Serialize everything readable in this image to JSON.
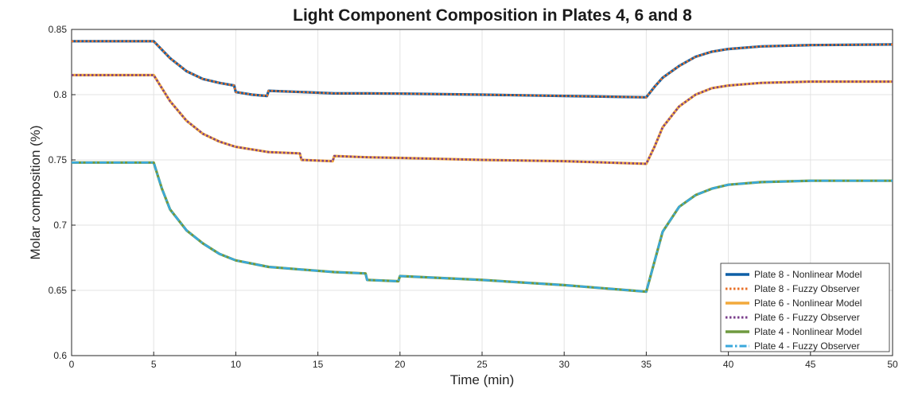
{
  "chart_data": {
    "type": "line",
    "title": "Light Component Composition in Plates 4, 6 and 8",
    "xlabel": "Time (min)",
    "ylabel": "Molar composition (%)",
    "xlim": [
      0,
      50
    ],
    "ylim": [
      0.6,
      0.85
    ],
    "xticks": [
      0,
      5,
      10,
      15,
      20,
      25,
      30,
      35,
      40,
      45,
      50
    ],
    "yticks": [
      0.6,
      0.65,
      0.7,
      0.75,
      0.8,
      0.85
    ],
    "xtick_labels": [
      "0",
      "5",
      "10",
      "15",
      "20",
      "25",
      "30",
      "35",
      "40",
      "45",
      "50"
    ],
    "ytick_labels": [
      "0.6",
      "0.65",
      "0.7",
      "0.75",
      "0.8",
      "0.85"
    ],
    "grid": true,
    "legend_position": "bottom-right",
    "series": [
      {
        "name": "Plate 8 - Nonlinear Model",
        "color": "#0d5fa6",
        "style": "solid",
        "points": [
          [
            0,
            0.841
          ],
          [
            5,
            0.841
          ],
          [
            6,
            0.828
          ],
          [
            7,
            0.818
          ],
          [
            8,
            0.812
          ],
          [
            9,
            0.809
          ],
          [
            9.9,
            0.807
          ],
          [
            10,
            0.802
          ],
          [
            11,
            0.8
          ],
          [
            11.9,
            0.799
          ],
          [
            12,
            0.803
          ],
          [
            14,
            0.802
          ],
          [
            16,
            0.801
          ],
          [
            18,
            0.801
          ],
          [
            20,
            0.8008
          ],
          [
            25,
            0.8
          ],
          [
            30,
            0.799
          ],
          [
            35,
            0.798
          ],
          [
            35.5,
            0.806
          ],
          [
            36,
            0.813
          ],
          [
            37,
            0.822
          ],
          [
            38,
            0.829
          ],
          [
            39,
            0.833
          ],
          [
            40,
            0.835
          ],
          [
            42,
            0.837
          ],
          [
            45,
            0.838
          ],
          [
            50,
            0.8385
          ]
        ]
      },
      {
        "name": "Plate 8 - Fuzzy Observer",
        "color": "#e8712a",
        "style": "dotted",
        "points": [
          [
            0,
            0.841
          ],
          [
            5,
            0.841
          ],
          [
            6,
            0.828
          ],
          [
            7,
            0.818
          ],
          [
            8,
            0.812
          ],
          [
            9,
            0.809
          ],
          [
            9.9,
            0.807
          ],
          [
            10,
            0.802
          ],
          [
            11,
            0.8
          ],
          [
            11.9,
            0.799
          ],
          [
            12,
            0.803
          ],
          [
            14,
            0.802
          ],
          [
            16,
            0.801
          ],
          [
            18,
            0.801
          ],
          [
            20,
            0.8008
          ],
          [
            25,
            0.8
          ],
          [
            30,
            0.799
          ],
          [
            35,
            0.798
          ],
          [
            35.5,
            0.806
          ],
          [
            36,
            0.813
          ],
          [
            37,
            0.822
          ],
          [
            38,
            0.829
          ],
          [
            39,
            0.833
          ],
          [
            40,
            0.835
          ],
          [
            42,
            0.837
          ],
          [
            45,
            0.838
          ],
          [
            50,
            0.8385
          ]
        ]
      },
      {
        "name": "Plate 6 - Nonlinear Model",
        "color": "#f2a93b",
        "style": "solid",
        "points": [
          [
            0,
            0.815
          ],
          [
            5,
            0.815
          ],
          [
            6,
            0.795
          ],
          [
            7,
            0.78
          ],
          [
            8,
            0.77
          ],
          [
            9,
            0.764
          ],
          [
            10,
            0.76
          ],
          [
            12,
            0.756
          ],
          [
            13.9,
            0.755
          ],
          [
            14,
            0.75
          ],
          [
            15.9,
            0.749
          ],
          [
            16,
            0.753
          ],
          [
            18,
            0.752
          ],
          [
            20,
            0.7515
          ],
          [
            25,
            0.75
          ],
          [
            30,
            0.749
          ],
          [
            35,
            0.747
          ],
          [
            35.5,
            0.76
          ],
          [
            36,
            0.775
          ],
          [
            37,
            0.791
          ],
          [
            38,
            0.8
          ],
          [
            39,
            0.805
          ],
          [
            40,
            0.807
          ],
          [
            42,
            0.809
          ],
          [
            45,
            0.81
          ],
          [
            50,
            0.81
          ]
        ]
      },
      {
        "name": "Plate 6 - Fuzzy Observer",
        "color": "#7b3f8c",
        "style": "dotted",
        "points": [
          [
            0,
            0.815
          ],
          [
            5,
            0.815
          ],
          [
            6,
            0.795
          ],
          [
            7,
            0.78
          ],
          [
            8,
            0.77
          ],
          [
            9,
            0.764
          ],
          [
            10,
            0.76
          ],
          [
            12,
            0.756
          ],
          [
            13.9,
            0.755
          ],
          [
            14,
            0.75
          ],
          [
            15.9,
            0.749
          ],
          [
            16,
            0.753
          ],
          [
            18,
            0.752
          ],
          [
            20,
            0.7515
          ],
          [
            25,
            0.75
          ],
          [
            30,
            0.749
          ],
          [
            35,
            0.747
          ],
          [
            35.5,
            0.76
          ],
          [
            36,
            0.775
          ],
          [
            37,
            0.791
          ],
          [
            38,
            0.8
          ],
          [
            39,
            0.805
          ],
          [
            40,
            0.807
          ],
          [
            42,
            0.809
          ],
          [
            45,
            0.81
          ],
          [
            50,
            0.81
          ]
        ]
      },
      {
        "name": "Plate 4 - Nonlinear Model",
        "color": "#6f9a3f",
        "style": "solid",
        "points": [
          [
            0,
            0.748
          ],
          [
            5,
            0.748
          ],
          [
            5.5,
            0.728
          ],
          [
            6,
            0.712
          ],
          [
            7,
            0.696
          ],
          [
            8,
            0.686
          ],
          [
            9,
            0.678
          ],
          [
            10,
            0.673
          ],
          [
            12,
            0.668
          ],
          [
            14,
            0.666
          ],
          [
            16,
            0.664
          ],
          [
            17.9,
            0.663
          ],
          [
            18,
            0.658
          ],
          [
            19.9,
            0.657
          ],
          [
            20,
            0.661
          ],
          [
            25,
            0.658
          ],
          [
            30,
            0.654
          ],
          [
            35,
            0.649
          ],
          [
            35.5,
            0.672
          ],
          [
            36,
            0.695
          ],
          [
            37,
            0.714
          ],
          [
            38,
            0.723
          ],
          [
            39,
            0.728
          ],
          [
            40,
            0.731
          ],
          [
            42,
            0.733
          ],
          [
            45,
            0.734
          ],
          [
            50,
            0.734
          ]
        ]
      },
      {
        "name": "Plate 4 - Fuzzy Observer",
        "color": "#3aa8dc",
        "style": "dashdot",
        "points": [
          [
            0,
            0.748
          ],
          [
            5,
            0.748
          ],
          [
            5.5,
            0.728
          ],
          [
            6,
            0.712
          ],
          [
            7,
            0.696
          ],
          [
            8,
            0.686
          ],
          [
            9,
            0.678
          ],
          [
            10,
            0.673
          ],
          [
            12,
            0.668
          ],
          [
            14,
            0.666
          ],
          [
            16,
            0.664
          ],
          [
            17.9,
            0.663
          ],
          [
            18,
            0.658
          ],
          [
            19.9,
            0.657
          ],
          [
            20,
            0.661
          ],
          [
            25,
            0.658
          ],
          [
            30,
            0.654
          ],
          [
            35,
            0.649
          ],
          [
            35.5,
            0.672
          ],
          [
            36,
            0.695
          ],
          [
            37,
            0.714
          ],
          [
            38,
            0.723
          ],
          [
            39,
            0.728
          ],
          [
            40,
            0.731
          ],
          [
            42,
            0.733
          ],
          [
            45,
            0.734
          ],
          [
            50,
            0.734
          ]
        ]
      }
    ]
  }
}
